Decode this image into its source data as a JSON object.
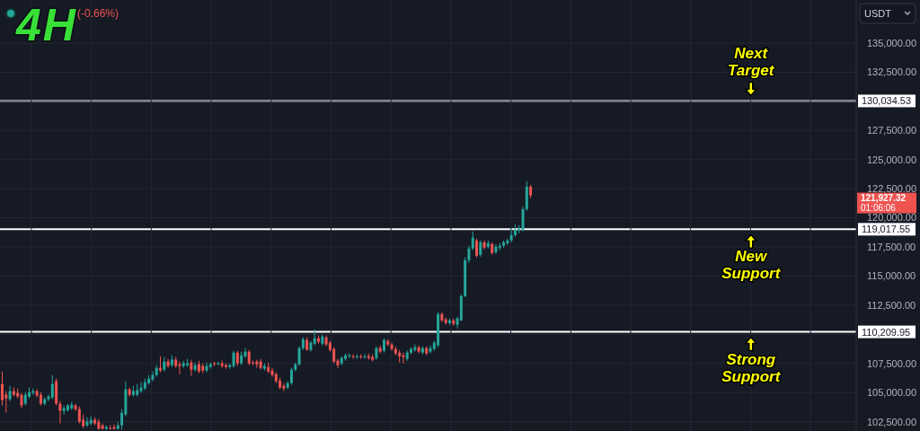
{
  "chart_data": {
    "type": "candlestick",
    "title": "4H",
    "subtitle": "(-0.66%)",
    "ylabel": "USDT",
    "categories": [
      null,
      null,
      null,
      null,
      null,
      null,
      null,
      null,
      null,
      null,
      null,
      null,
      null,
      null,
      null,
      null,
      null,
      null,
      null,
      null,
      null,
      null,
      null,
      null,
      null,
      null,
      null,
      null,
      null,
      null,
      null,
      null,
      null,
      null,
      null,
      null,
      null,
      null,
      null,
      null,
      null,
      null,
      null,
      null,
      null,
      null,
      null,
      null,
      null,
      null,
      null,
      null,
      null,
      null,
      null,
      null,
      null,
      null,
      null,
      null,
      null,
      null,
      null,
      null,
      null,
      null,
      null,
      null,
      null,
      null,
      null,
      null,
      null,
      null,
      null,
      null,
      null,
      null,
      null,
      null,
      null,
      null,
      null,
      null,
      null,
      null,
      null,
      null,
      null,
      null,
      null,
      null,
      null,
      null,
      null,
      null,
      null,
      null,
      null,
      null,
      null,
      null,
      null,
      null,
      null,
      null,
      null,
      null,
      null,
      null,
      null,
      null,
      null,
      null,
      null,
      null,
      null,
      null,
      null,
      null,
      null,
      null,
      null,
      null,
      null,
      null,
      null,
      null,
      null,
      null,
      null,
      null,
      null,
      null,
      null,
      null,
      null,
      null,
      null,
      null,
      null,
      null,
      null,
      null,
      null,
      null,
      null,
      null,
      null,
      null,
      null,
      null,
      null,
      null,
      null,
      null,
      null,
      null,
      null,
      null,
      null,
      null,
      null,
      null,
      null,
      null,
      null,
      null,
      null,
      null,
      null,
      null,
      null,
      null,
      null,
      null,
      null,
      null,
      null,
      null,
      null,
      null,
      null,
      null,
      null,
      null,
      null,
      null,
      null,
      null,
      null,
      null,
      null,
      null,
      null,
      null,
      null,
      null,
      null,
      null,
      null,
      null,
      null,
      null,
      null,
      null,
      null,
      null,
      null,
      null,
      null,
      null,
      null,
      null,
      null,
      null,
      null,
      null,
      null,
      null,
      null,
      null
    ],
    "ohlc": [
      [
        105740,
        106810,
        103890,
        104350
      ],
      [
        104810,
        105120,
        103270,
        104500
      ],
      [
        104430,
        105580,
        104270,
        105120
      ],
      [
        105120,
        105430,
        104660,
        104810
      ],
      [
        104970,
        105350,
        104500,
        104660
      ],
      [
        104810,
        104970,
        103660,
        103890
      ],
      [
        104040,
        105040,
        103890,
        104810
      ],
      [
        104660,
        105430,
        104500,
        105040
      ],
      [
        104970,
        105350,
        104810,
        105120
      ],
      [
        105120,
        105270,
        104580,
        104740
      ],
      [
        104810,
        105040,
        103890,
        104040
      ],
      [
        104040,
        104580,
        103890,
        104430
      ],
      [
        104430,
        104810,
        104270,
        104660
      ],
      [
        104580,
        106510,
        104430,
        105740
      ],
      [
        105970,
        106200,
        103890,
        104040
      ],
      [
        104040,
        104270,
        102350,
        103430
      ],
      [
        103430,
        103890,
        103120,
        103660
      ],
      [
        103500,
        104040,
        103350,
        103890
      ],
      [
        103660,
        104200,
        103500,
        103970
      ],
      [
        103890,
        104040,
        103430,
        103580
      ],
      [
        103580,
        103810,
        102350,
        102500
      ],
      [
        102660,
        103120,
        101960,
        102120
      ],
      [
        102190,
        102890,
        102040,
        102500
      ],
      [
        102350,
        102960,
        102190,
        102660
      ],
      [
        102660,
        102890,
        102190,
        102350
      ],
      [
        102500,
        102730,
        101810,
        101890
      ],
      [
        102190,
        102350,
        101810,
        101890
      ],
      [
        101890,
        102190,
        101810,
        102040
      ],
      [
        101960,
        102190,
        101810,
        101890
      ],
      [
        102040,
        102270,
        101810,
        101890
      ],
      [
        101890,
        102500,
        101810,
        102190
      ],
      [
        102190,
        103580,
        101810,
        103270
      ],
      [
        103120,
        105970,
        102960,
        105270
      ],
      [
        105270,
        105430,
        104660,
        104810
      ],
      [
        104810,
        105580,
        104660,
        105120
      ],
      [
        104810,
        105740,
        104660,
        105200
      ],
      [
        105120,
        105890,
        104970,
        105430
      ],
      [
        105350,
        106200,
        105200,
        105890
      ],
      [
        105810,
        106510,
        105660,
        106200
      ],
      [
        106120,
        106810,
        105970,
        106510
      ],
      [
        106510,
        107350,
        106350,
        107120
      ],
      [
        107120,
        108120,
        106740,
        106890
      ],
      [
        106970,
        108050,
        106810,
        107660
      ],
      [
        107660,
        107890,
        107120,
        107280
      ],
      [
        107350,
        108200,
        107200,
        107820
      ],
      [
        107820,
        108050,
        107120,
        107280
      ],
      [
        107430,
        107660,
        106580,
        107280
      ],
      [
        107280,
        107740,
        107120,
        107510
      ],
      [
        107350,
        107890,
        107200,
        107510
      ],
      [
        107580,
        107820,
        106430,
        106970
      ],
      [
        106970,
        107580,
        106810,
        107350
      ],
      [
        107430,
        107740,
        106660,
        106810
      ],
      [
        107280,
        107510,
        106660,
        106890
      ],
      [
        106890,
        107580,
        106740,
        107280
      ],
      [
        107200,
        107580,
        107050,
        107430
      ],
      [
        107510,
        107660,
        107280,
        107430
      ],
      [
        107430,
        107660,
        107350,
        107510
      ],
      [
        107510,
        107740,
        107120,
        107280
      ],
      [
        107350,
        107510,
        107050,
        107200
      ],
      [
        107200,
        107510,
        107050,
        107350
      ],
      [
        107280,
        108590,
        107120,
        108430
      ],
      [
        108430,
        108590,
        107280,
        107510
      ],
      [
        107510,
        108510,
        107350,
        108200
      ],
      [
        108120,
        108820,
        107970,
        108510
      ],
      [
        108510,
        108660,
        107350,
        107510
      ],
      [
        107580,
        107740,
        107350,
        107510
      ],
      [
        107660,
        107820,
        107120,
        107430
      ],
      [
        107660,
        107890,
        106970,
        107120
      ],
      [
        107050,
        107510,
        106890,
        107280
      ],
      [
        107200,
        107580,
        106660,
        106810
      ],
      [
        106890,
        107120,
        106350,
        106510
      ],
      [
        106580,
        106740,
        105810,
        105970
      ],
      [
        106040,
        106280,
        105270,
        105430
      ],
      [
        105580,
        105810,
        105120,
        105350
      ],
      [
        105430,
        105970,
        105270,
        105810
      ],
      [
        105810,
        107120,
        105660,
        106970
      ],
      [
        106970,
        107580,
        106810,
        107430
      ],
      [
        107430,
        108970,
        107280,
        108820
      ],
      [
        108820,
        109740,
        108660,
        109590
      ],
      [
        109510,
        109740,
        108590,
        108660
      ],
      [
        108660,
        109430,
        108510,
        109280
      ],
      [
        109200,
        110430,
        109050,
        109660
      ],
      [
        109660,
        109900,
        109200,
        109360
      ],
      [
        109200,
        109970,
        109050,
        109820
      ],
      [
        109740,
        109900,
        108970,
        109130
      ],
      [
        109280,
        109430,
        108510,
        108660
      ],
      [
        108740,
        108890,
        107510,
        107660
      ],
      [
        107740,
        107890,
        107120,
        107350
      ],
      [
        107510,
        108120,
        107350,
        107970
      ],
      [
        107890,
        108360,
        107740,
        108200
      ],
      [
        108120,
        108360,
        107970,
        108200
      ],
      [
        108120,
        108280,
        107890,
        108050
      ],
      [
        108050,
        108280,
        107890,
        108120
      ],
      [
        108120,
        108280,
        107890,
        108050
      ],
      [
        108050,
        108280,
        107890,
        108120
      ],
      [
        108120,
        108360,
        107820,
        107970
      ],
      [
        108050,
        108280,
        107660,
        107820
      ],
      [
        107970,
        108970,
        107820,
        108820
      ],
      [
        108820,
        109050,
        108360,
        108510
      ],
      [
        108590,
        109660,
        108430,
        109510
      ],
      [
        109430,
        109590,
        108970,
        109130
      ],
      [
        109130,
        109280,
        108590,
        108740
      ],
      [
        108740,
        108970,
        108200,
        108360
      ],
      [
        108430,
        108660,
        107580,
        108120
      ],
      [
        108200,
        108430,
        107510,
        108050
      ],
      [
        107890,
        108590,
        107740,
        108430
      ],
      [
        108430,
        108890,
        108280,
        108740
      ],
      [
        108660,
        109130,
        108510,
        108890
      ],
      [
        108890,
        109050,
        108360,
        108510
      ],
      [
        108430,
        108970,
        108280,
        108820
      ],
      [
        108820,
        108970,
        108200,
        108360
      ],
      [
        108510,
        109050,
        108360,
        108820
      ],
      [
        108740,
        109430,
        108590,
        109280
      ],
      [
        109050,
        111900,
        108890,
        111740
      ],
      [
        111740,
        111900,
        111050,
        111200
      ],
      [
        111280,
        111440,
        110820,
        110970
      ],
      [
        110970,
        111360,
        110820,
        111200
      ],
      [
        111200,
        111360,
        110740,
        110900
      ],
      [
        110820,
        111510,
        110510,
        111360
      ],
      [
        111200,
        113440,
        111130,
        113280
      ],
      [
        113280,
        116600,
        113210,
        116360
      ],
      [
        116360,
        117600,
        116130,
        117370
      ],
      [
        117370,
        118830,
        117210,
        118290
      ],
      [
        118060,
        118210,
        116600,
        116750
      ],
      [
        116830,
        118060,
        116670,
        117900
      ],
      [
        117900,
        118060,
        117290,
        117440
      ],
      [
        117520,
        118060,
        117370,
        117830
      ],
      [
        117750,
        117900,
        116830,
        116980
      ],
      [
        117060,
        117750,
        116900,
        117520
      ],
      [
        117440,
        117830,
        117210,
        117600
      ],
      [
        117600,
        118060,
        117440,
        117900
      ],
      [
        117830,
        118210,
        117670,
        118060
      ],
      [
        118060,
        119060,
        117900,
        118520
      ],
      [
        118520,
        119440,
        118370,
        118980
      ],
      [
        118910,
        119370,
        118670,
        119060
      ],
      [
        118980,
        120980,
        118830,
        120750
      ],
      [
        120750,
        123140,
        120600,
        122680
      ],
      [
        122680,
        122830,
        121680,
        121927.32
      ],
      null,
      null,
      null,
      null,
      null,
      null,
      null,
      null,
      null,
      null,
      null,
      null,
      null,
      null,
      null,
      null,
      null,
      null,
      null,
      null,
      null,
      null,
      null,
      null,
      null,
      null,
      null,
      null,
      null,
      null,
      null,
      null,
      null,
      null,
      null,
      null,
      null,
      null,
      null,
      null,
      null,
      null,
      null,
      null,
      null,
      null,
      null,
      null,
      null,
      null,
      null,
      null,
      null,
      null,
      null,
      null,
      null,
      null,
      null,
      null,
      null,
      null,
      null,
      null,
      null,
      null,
      null,
      null,
      null,
      null,
      null,
      null,
      null,
      null,
      null,
      null,
      null,
      null,
      null,
      null,
      null,
      null,
      null,
      null
    ],
    "colors": [
      "#ef5350",
      "#ef5350",
      "#26a69a",
      "#ef5350",
      "#ef5350",
      "#ef5350",
      "#26a69a",
      "#26a69a",
      "#26a69a",
      "#ef5350",
      "#ef5350",
      "#26a69a",
      "#26a69a",
      "#26a69a",
      "#ef5350",
      "#ef5350",
      "#26a69a",
      "#26a69a",
      "#26a69a",
      "#ef5350",
      "#ef5350",
      "#ef5350",
      "#26a69a",
      "#26a69a",
      "#ef5350",
      "#ef5350",
      "#ef5350",
      "#26a69a",
      "#ef5350",
      "#ef5350",
      "#26a69a",
      "#26a69a",
      "#26a69a",
      "#ef5350",
      "#26a69a",
      "#26a69a",
      "#26a69a",
      "#26a69a",
      "#26a69a",
      "#26a69a",
      "#26a69a",
      "#ef5350",
      "#26a69a",
      "#ef5350",
      "#26a69a",
      "#ef5350",
      "#ef5350",
      "#26a69a",
      "#26a69a",
      "#ef5350",
      "#26a69a",
      "#ef5350",
      "#ef5350",
      "#26a69a",
      "#26a69a",
      "#ef5350",
      "#26a69a",
      "#ef5350",
      "#ef5350",
      "#26a69a",
      "#26a69a",
      "#ef5350",
      "#26a69a",
      "#26a69a",
      "#ef5350",
      "#ef5350",
      "#ef5350",
      "#ef5350",
      "#26a69a",
      "#ef5350",
      "#ef5350",
      "#ef5350",
      "#ef5350",
      "#ef5350",
      "#26a69a",
      "#26a69a",
      "#26a69a",
      "#26a69a",
      "#26a69a",
      "#ef5350",
      "#26a69a",
      "#26a69a",
      "#ef5350",
      "#26a69a",
      "#ef5350",
      "#ef5350",
      "#ef5350",
      "#ef5350",
      "#26a69a",
      "#26a69a",
      "#26a69a",
      "#ef5350",
      "#26a69a",
      "#ef5350",
      "#26a69a",
      "#ef5350",
      "#ef5350",
      "#26a69a",
      "#ef5350",
      "#26a69a",
      "#ef5350",
      "#ef5350",
      "#ef5350",
      "#ef5350",
      "#ef5350",
      "#26a69a",
      "#26a69a",
      "#26a69a",
      "#ef5350",
      "#26a69a",
      "#ef5350",
      "#26a69a",
      "#26a69a",
      "#26a69a",
      "#ef5350",
      "#ef5350",
      "#26a69a",
      "#ef5350",
      "#26a69a",
      "#26a69a",
      "#26a69a",
      "#26a69a",
      "#26a69a",
      "#ef5350",
      "#26a69a",
      "#ef5350",
      "#26a69a",
      "#ef5350",
      "#26a69a",
      "#26a69a",
      "#26a69a",
      "#26a69a",
      "#26a69a",
      "#26a69a",
      "#26a69a",
      "#26a69a",
      "#26a69a",
      "#ef5350",
      null,
      null,
      null,
      null,
      null,
      null,
      null,
      null,
      null,
      null,
      null,
      null,
      null,
      null,
      null,
      null,
      null,
      null,
      null,
      null,
      null,
      null,
      null,
      null,
      null,
      null,
      null,
      null,
      null,
      null,
      null,
      null,
      null,
      null,
      null,
      null,
      null,
      null,
      null,
      null,
      null,
      null,
      null,
      null,
      null,
      null,
      null,
      null,
      null,
      null,
      null,
      null,
      null,
      null,
      null,
      null,
      null,
      null,
      null,
      null,
      null,
      null,
      null,
      null,
      null,
      null,
      null,
      null,
      null,
      null,
      null,
      null,
      null,
      null,
      null,
      null,
      null,
      null,
      null,
      null,
      null,
      null,
      null,
      null
    ],
    "ylim": [
      101700,
      138700
    ],
    "yticks": [
      {
        "value": 102500,
        "label": "102,500.00"
      },
      {
        "value": 105000,
        "label": "105,000.00"
      },
      {
        "value": 107500,
        "label": "107,500.00"
      },
      {
        "value": 110000,
        "label": null
      },
      {
        "value": 112500,
        "label": "112,500.00"
      },
      {
        "value": 115000,
        "label": "115,000.00"
      },
      {
        "value": 117500,
        "label": "117,500.00"
      },
      {
        "value": 120000,
        "label": "120,000.00"
      },
      {
        "value": 122500,
        "label": "122,500.00"
      },
      {
        "value": 125000,
        "label": "125,000.00"
      },
      {
        "value": 127500,
        "label": "127,500.00"
      },
      {
        "value": 130000,
        "label": null
      },
      {
        "value": 132500,
        "label": "132,500.00"
      },
      {
        "value": 135000,
        "label": "135,000.00"
      }
    ],
    "grid": true,
    "ref_lines": [
      {
        "axis": "y",
        "value": 130034.53,
        "label": "130,034.53",
        "color": "#ffffff"
      },
      {
        "axis": "y",
        "value": 119017.55,
        "label": "119,017.55",
        "color": "#ffffff"
      },
      {
        "axis": "y",
        "value": 110209.95,
        "label": "110,209.95",
        "color": "#ffffff"
      }
    ],
    "annotations": [
      {
        "text": "Next Target",
        "y": 130034.53
      },
      {
        "text": "New Support",
        "y": 119017.55
      },
      {
        "text": "Strong Support",
        "y": 110209.95
      },
      "121,927.32",
      "01:06:06"
    ]
  }
}
